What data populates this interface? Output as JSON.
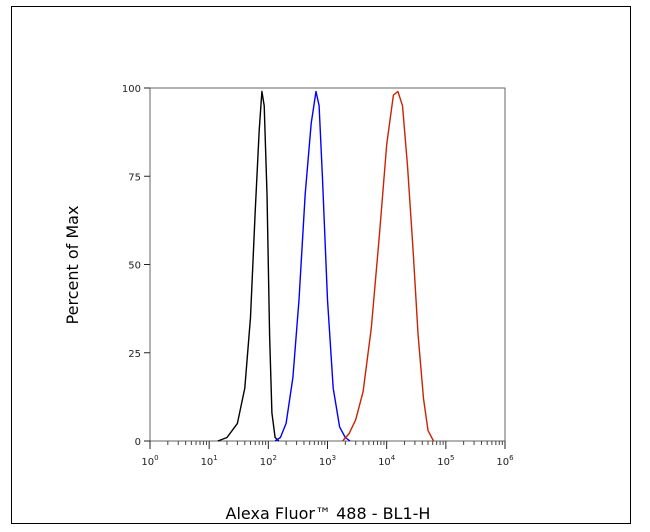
{
  "chart_data": {
    "type": "line",
    "xlabel": "Alexa Fluor™ 488 - BL1-H",
    "ylabel": "Percent of Max",
    "x_scale": "log",
    "xlim": [
      1,
      1000000
    ],
    "ylim": [
      0,
      100
    ],
    "x_ticks": [
      {
        "value": 1,
        "base": "10",
        "exp": "0"
      },
      {
        "value": 10,
        "base": "10",
        "exp": "1"
      },
      {
        "value": 100,
        "base": "10",
        "exp": "2"
      },
      {
        "value": 1000,
        "base": "10",
        "exp": "3"
      },
      {
        "value": 10000,
        "base": "10",
        "exp": "4"
      },
      {
        "value": 100000,
        "base": "10",
        "exp": "5"
      },
      {
        "value": 1000000,
        "base": "10",
        "exp": "6"
      }
    ],
    "y_ticks": [
      "0",
      "25",
      "50",
      "75",
      "100"
    ],
    "grid": false,
    "legend": "none",
    "series": [
      {
        "color": "#000000",
        "points": [
          [
            14,
            0
          ],
          [
            20,
            1
          ],
          [
            30,
            5
          ],
          [
            40,
            15
          ],
          [
            50,
            35
          ],
          [
            60,
            65
          ],
          [
            70,
            88
          ],
          [
            78,
            99
          ],
          [
            85,
            95
          ],
          [
            95,
            70
          ],
          [
            105,
            30
          ],
          [
            115,
            8
          ],
          [
            130,
            1
          ],
          [
            150,
            0
          ]
        ]
      },
      {
        "color": "#0000ff",
        "points": [
          [
            130,
            0
          ],
          [
            160,
            1
          ],
          [
            200,
            5
          ],
          [
            260,
            18
          ],
          [
            330,
            40
          ],
          [
            420,
            70
          ],
          [
            530,
            90
          ],
          [
            640,
            99
          ],
          [
            720,
            95
          ],
          [
            820,
            75
          ],
          [
            1000,
            40
          ],
          [
            1250,
            15
          ],
          [
            1600,
            4
          ],
          [
            2000,
            1
          ],
          [
            2400,
            0
          ]
        ]
      },
      {
        "color": "#cc2200",
        "points": [
          [
            1800,
            0
          ],
          [
            2300,
            2
          ],
          [
            3000,
            6
          ],
          [
            4000,
            14
          ],
          [
            5500,
            32
          ],
          [
            7500,
            58
          ],
          [
            10000,
            84
          ],
          [
            13000,
            98
          ],
          [
            15500,
            99
          ],
          [
            18500,
            95
          ],
          [
            22500,
            78
          ],
          [
            28000,
            54
          ],
          [
            34000,
            30
          ],
          [
            42000,
            12
          ],
          [
            50000,
            3
          ],
          [
            62000,
            0
          ]
        ]
      }
    ]
  }
}
